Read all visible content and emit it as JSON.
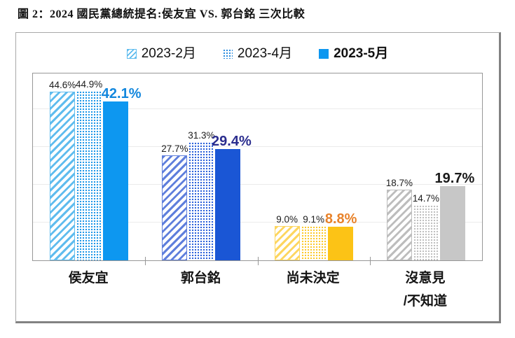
{
  "title": "圖 2：2024 國民黨總統提名:侯友宜 VS. 郭台銘 三次比較",
  "legend": [
    {
      "label": "2023-2月",
      "pattern": "hatch",
      "bold": false
    },
    {
      "label": "2023-4月",
      "pattern": "dots",
      "bold": false
    },
    {
      "label": "2023-5月",
      "pattern": "solid",
      "bold": true
    }
  ],
  "legend_colors": {
    "hatch": "#5fbcee",
    "dots": "#2e8fe0",
    "solid": "#0d97f0"
  },
  "chart_data": {
    "type": "bar",
    "title": "圖 2：2024 國民黨總統提名:侯友宜 VS. 郭台銘 三次比較",
    "categories": [
      "侯友宜",
      "郭台銘",
      "尚未決定",
      "沒意見/不知道"
    ],
    "category_lines": [
      {
        "label": "侯友宜",
        "label2": ""
      },
      {
        "label": "郭台銘",
        "label2": ""
      },
      {
        "label": "尚未決定",
        "label2": ""
      },
      {
        "label": "沒意見",
        "label2": "/不知道"
      }
    ],
    "series": [
      {
        "name": "2023-2月",
        "style": "hatch",
        "values": [
          44.6,
          27.7,
          9.0,
          18.7
        ]
      },
      {
        "name": "2023-4月",
        "style": "dots",
        "values": [
          44.9,
          31.3,
          9.1,
          14.7
        ]
      },
      {
        "name": "2023-5月",
        "style": "solid",
        "values": [
          42.1,
          29.4,
          8.8,
          19.7
        ]
      }
    ],
    "value_label_format": "{value}%",
    "xlabel": "",
    "ylabel": "",
    "ylim": [
      0,
      50
    ],
    "gridlines_pct": [
      10,
      20,
      30,
      40
    ],
    "grid": "on",
    "legend_position": "top"
  },
  "group_colors": [
    {
      "solid": "#0d97f0",
      "hatch": "#5fbcee",
      "dots": "#2098e8",
      "big_label": "#1387dd"
    },
    {
      "solid": "#1a56d5",
      "hatch": "#5f7fdc",
      "dots": "#2e63da",
      "big_label": "#2b2d8e"
    },
    {
      "solid": "#fcc316",
      "hatch": "#fdd65f",
      "dots": "#fcc92d",
      "big_label": "#e8822a"
    },
    {
      "solid": "#c7c7c7",
      "hatch": "#bdbdbd",
      "dots": "#c0c0c0",
      "big_label": "#1a1a1a"
    }
  ],
  "small_label_color": "#1c1c1c"
}
